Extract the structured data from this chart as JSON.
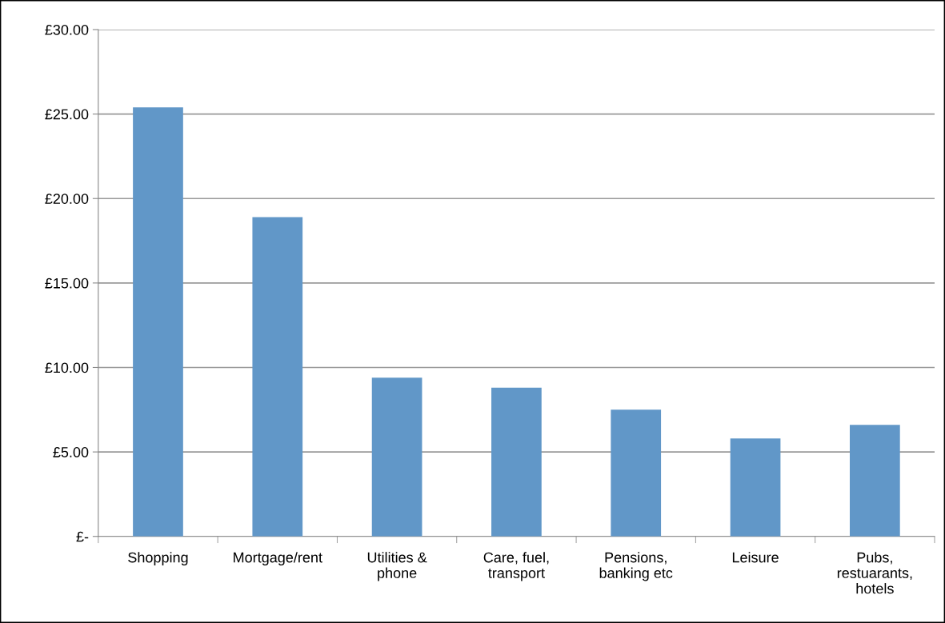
{
  "chart_data": {
    "type": "bar",
    "categories": [
      "Shopping",
      "Mortgage/rent",
      "Utilities &\nphone",
      "Care, fuel,\ntransport",
      "Pensions,\nbanking etc",
      "Leisure",
      "Pubs,\nrestuarants,\nhotels"
    ],
    "values": [
      25.4,
      18.9,
      9.4,
      8.8,
      7.5,
      5.8,
      6.6
    ],
    "color": "#6197c8",
    "ylim": [
      0,
      30
    ],
    "yticks": [
      {
        "value": 0,
        "label": "£-"
      },
      {
        "value": 5,
        "label": "£5.00"
      },
      {
        "value": 10,
        "label": "£10.00"
      },
      {
        "value": 15,
        "label": "£15.00"
      },
      {
        "value": 20,
        "label": "£20.00"
      },
      {
        "value": 25,
        "label": "£25.00"
      },
      {
        "value": 30,
        "label": "£30.00"
      }
    ],
    "grid": "y",
    "legend": false
  }
}
